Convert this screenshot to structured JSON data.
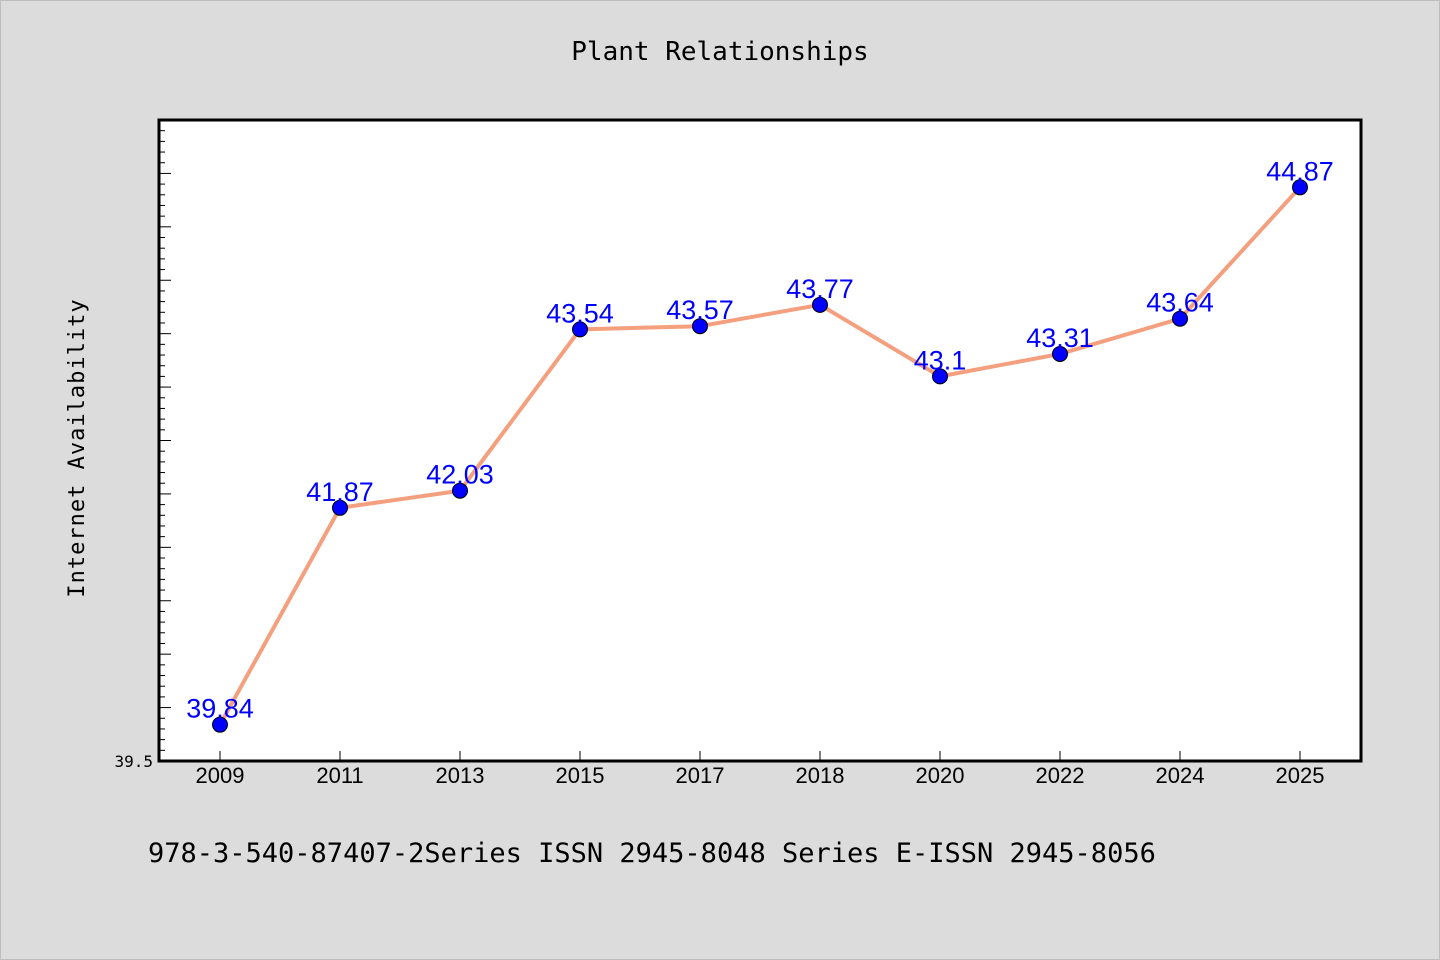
{
  "chart_data": {
    "type": "line",
    "title": "Plant Relationships",
    "xlabel": "",
    "ylabel": "Internet Availability",
    "categories": [
      "2009",
      "2011",
      "2013",
      "2015",
      "2017",
      "2018",
      "2020",
      "2022",
      "2024",
      "2025"
    ],
    "series": [
      {
        "values": [
          39.84,
          41.87,
          42.03,
          43.54,
          43.57,
          43.77,
          43.1,
          43.31,
          43.64,
          44.87
        ],
        "data_labels": [
          "39.84",
          "41.87",
          "42.03",
          "43.54",
          "43.57",
          "43.77",
          "43.1",
          "43.31",
          "43.64",
          "44.87"
        ],
        "line_color": "#f4a07f",
        "marker_color": "#0000ff"
      }
    ],
    "ylim": [
      39.5,
      45.5
    ],
    "yticks_labeled": [
      "39.5"
    ],
    "grid": false,
    "legend": "none"
  },
  "footer": {
    "text": "978-3-540-87407-2Series ISSN 2945-8048 Series E-ISSN 2945-8056"
  },
  "colors": {
    "background": "#dcdcdc",
    "plot_background": "#ffffff"
  }
}
